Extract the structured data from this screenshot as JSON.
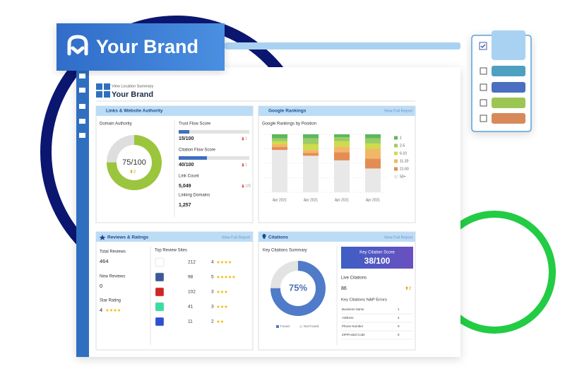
{
  "brand": {
    "name": "Your Brand"
  },
  "header": {
    "subtitle": "View Location Summary",
    "title": "Your Brand"
  },
  "links": {
    "title": "Links & Website Authority",
    "domain_authority": {
      "label": "Domain Authority",
      "value": 75,
      "max": 100,
      "value_label": "75/100",
      "change": 2,
      "change_direction": "up"
    },
    "metrics": [
      {
        "label": "Trust Flow Score",
        "value": 15,
        "max": 100,
        "value_label": "15/100",
        "change": 1,
        "change_direction": "down"
      },
      {
        "label": "Citation Flow Score",
        "value": 40,
        "max": 100,
        "value_label": "40/100",
        "change": 1,
        "change_direction": "down"
      },
      {
        "label": "Link Count",
        "value": 5049,
        "value_label": "5,049",
        "change": 125,
        "change_direction": "down"
      },
      {
        "label": "Linking Domains",
        "value": 1257,
        "value_label": "1,257"
      }
    ]
  },
  "rankings": {
    "title": "Google Rankings",
    "link": "View Full Report"
  },
  "chart_data": {
    "type": "bar",
    "stacked": true,
    "title": "Google Rankings by Position",
    "categories": [
      "Apr 2021",
      "Apr 2021",
      "Apr 2021",
      "Apr 2021"
    ],
    "series": [
      {
        "name": "1",
        "color": "#5cb85c",
        "values": [
          7,
          7,
          5,
          7
        ]
      },
      {
        "name": "2-5",
        "color": "#9ccc65",
        "values": [
          5,
          10,
          7,
          9
        ]
      },
      {
        "name": "6-10",
        "color": "#cddc4a",
        "values": [
          5,
          10,
          9,
          9
        ]
      },
      {
        "name": "11-20",
        "color": "#f2b766",
        "values": [
          5,
          5,
          10,
          17
        ]
      },
      {
        "name": "21-50",
        "color": "#e38d55",
        "values": [
          5,
          5,
          14,
          17
        ]
      },
      {
        "name": "50+",
        "color": "#e8e8e8",
        "values": [
          73,
          63,
          55,
          41
        ]
      }
    ],
    "ylim": [
      0,
      100
    ],
    "legend": "right"
  },
  "reviews": {
    "title": "Reviews & Ratings",
    "link": "View Full Report",
    "total": {
      "label": "Total Reviews",
      "value": 464
    },
    "new": {
      "label": "New Reviews",
      "value": 0
    },
    "rating": {
      "label": "Star Rating",
      "value": 4
    },
    "sites_title": "Top Review Sites",
    "sites": [
      {
        "reviews": 212,
        "rating": 4,
        "color": "#ffffff"
      },
      {
        "reviews": 98,
        "rating": 5,
        "color": "#3b5998"
      },
      {
        "reviews": 102,
        "rating": 3,
        "color": "#d32323"
      },
      {
        "reviews": 41,
        "rating": 3,
        "color": "#34e0a1"
      },
      {
        "reviews": 11,
        "rating": 2,
        "color": "#2d4fd6"
      }
    ]
  },
  "citations": {
    "title": "Citations",
    "link": "View Full Report",
    "summary_title": "Key Citations Summary",
    "found": 75,
    "found_label": "75%",
    "legend": [
      "Found",
      "Not Found"
    ],
    "colors": [
      "#4f7bc8",
      "#e3e3e3"
    ],
    "score_title": "Key Citation Score",
    "score_label": "38/100",
    "live": {
      "label": "Live Citations",
      "value": 86,
      "change": 2,
      "change_direction": "up"
    },
    "nap_title": "Key Citations NAP Errors",
    "nap": [
      {
        "label": "Business Name",
        "value": 1
      },
      {
        "label": "Address",
        "value": 4
      },
      {
        "label": "Phone Number",
        "value": 9
      },
      {
        "label": "ZIP/Postal Code",
        "value": 9
      }
    ]
  }
}
